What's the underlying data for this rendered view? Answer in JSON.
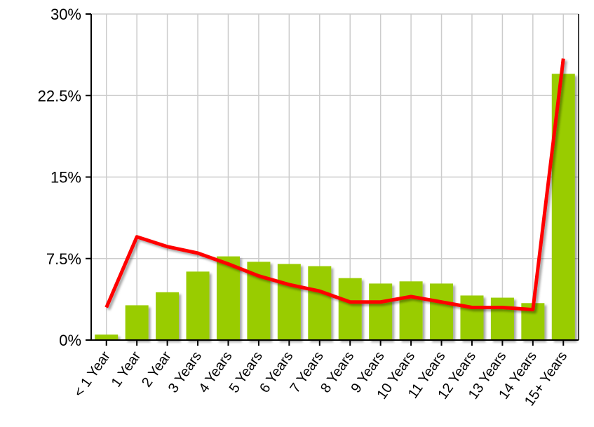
{
  "chart_data": {
    "type": "bar_line",
    "categories": [
      "< 1 Year",
      "1 Year",
      "2 Year",
      "3 Years",
      "4 Years",
      "5 Years",
      "6 Years",
      "7 Years",
      "8 Years",
      "9 Years",
      "10 Years",
      "11 Years",
      "12 Years",
      "13 Years",
      "14 Years",
      "15+ Years"
    ],
    "series": [
      {
        "type": "bar",
        "color": "#99cc00",
        "values": [
          0.5,
          3.2,
          4.4,
          6.3,
          7.7,
          7.2,
          7.0,
          6.8,
          5.7,
          5.2,
          5.4,
          5.2,
          4.1,
          3.9,
          3.4,
          24.5
        ]
      },
      {
        "type": "line",
        "color": "#ff0000",
        "values": [
          3.0,
          9.5,
          8.6,
          8.0,
          7.0,
          5.9,
          5.1,
          4.5,
          3.5,
          3.5,
          4.0,
          3.5,
          3.0,
          3.0,
          2.8,
          25.9
        ]
      }
    ],
    "ylim": [
      0,
      30
    ],
    "yticks": [
      {
        "value": 0,
        "label": "0%"
      },
      {
        "value": 7.5,
        "label": "7.5%"
      },
      {
        "value": 15,
        "label": "15%"
      },
      {
        "value": 22.5,
        "label": "22.5%"
      },
      {
        "value": 30,
        "label": "30%"
      }
    ],
    "grid": true
  }
}
